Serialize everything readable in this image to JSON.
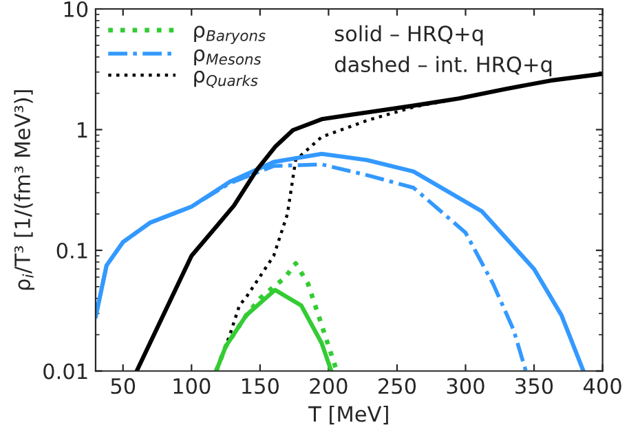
{
  "chart_data": {
    "type": "line",
    "xlabel": "T [MeV]",
    "ylabel": "ρ$_{i}$/T³ [1/(fm³ MeV³)]",
    "log": "y",
    "xlim": [
      30,
      400
    ],
    "ylim": [
      0.01,
      10
    ],
    "xticks": [
      50,
      100,
      150,
      200,
      250,
      300,
      350,
      400
    ],
    "yticks": [
      0.01,
      0.1,
      1,
      10
    ],
    "grid": false,
    "legend": "top left",
    "annotations": [
      "solid – HRQ+q",
      "dashed – int. HRQ+q"
    ],
    "series": [
      {
        "name": "ρ$_{Baryons}$",
        "color": "#33cc33",
        "line_style": "dotted",
        "x": [
          118,
          125,
          140,
          150,
          160,
          168,
          176,
          185,
          195,
          206
        ],
        "values": [
          0.01,
          0.016,
          0.029,
          0.04,
          0.05,
          0.059,
          0.078,
          0.053,
          0.024,
          0.01
        ]
      },
      {
        "name": "ρ$_{Mesons}$",
        "color": "#3399ff",
        "line_style": "dashdot",
        "x": [
          30,
          38,
          50,
          70,
          100,
          128,
          160,
          195,
          228,
          262,
          280,
          300,
          320,
          335,
          344
        ],
        "values": [
          0.028,
          0.075,
          0.117,
          0.17,
          0.23,
          0.36,
          0.5,
          0.515,
          0.42,
          0.33,
          0.22,
          0.14,
          0.053,
          0.022,
          0.01
        ]
      },
      {
        "name": "ρ$_{Quarks}$",
        "color": "#000000",
        "line_style": "dotted",
        "x": [
          118,
          128,
          135,
          140,
          160,
          170,
          176,
          195,
          228,
          262,
          295,
          329,
          362,
          400
        ],
        "values": [
          0.01,
          0.02,
          0.035,
          0.041,
          0.09,
          0.2,
          0.56,
          0.87,
          1.19,
          1.54,
          1.81,
          2.17,
          2.55,
          2.9
        ]
      },
      {
        "color": "#33cc33",
        "line_style": "solid",
        "x": [
          118,
          125,
          140,
          161,
          180,
          195,
          202
        ],
        "values": [
          0.01,
          0.016,
          0.029,
          0.047,
          0.035,
          0.017,
          0.01
        ]
      },
      {
        "color": "#3399ff",
        "line_style": "solid",
        "x": [
          30,
          38,
          50,
          70,
          100,
          128,
          160,
          195,
          228,
          262,
          312,
          350,
          370,
          386
        ],
        "values": [
          0.028,
          0.075,
          0.117,
          0.17,
          0.23,
          0.37,
          0.54,
          0.63,
          0.56,
          0.45,
          0.21,
          0.07,
          0.029,
          0.01
        ]
      },
      {
        "color": "#000000",
        "line_style": "solid",
        "x": [
          60,
          100,
          120,
          131,
          148,
          161,
          174,
          195,
          228,
          262,
          295,
          329,
          362,
          400
        ],
        "values": [
          0.01,
          0.09,
          0.167,
          0.235,
          0.47,
          0.72,
          0.99,
          1.22,
          1.39,
          1.58,
          1.81,
          2.17,
          2.55,
          2.9
        ]
      }
    ]
  }
}
